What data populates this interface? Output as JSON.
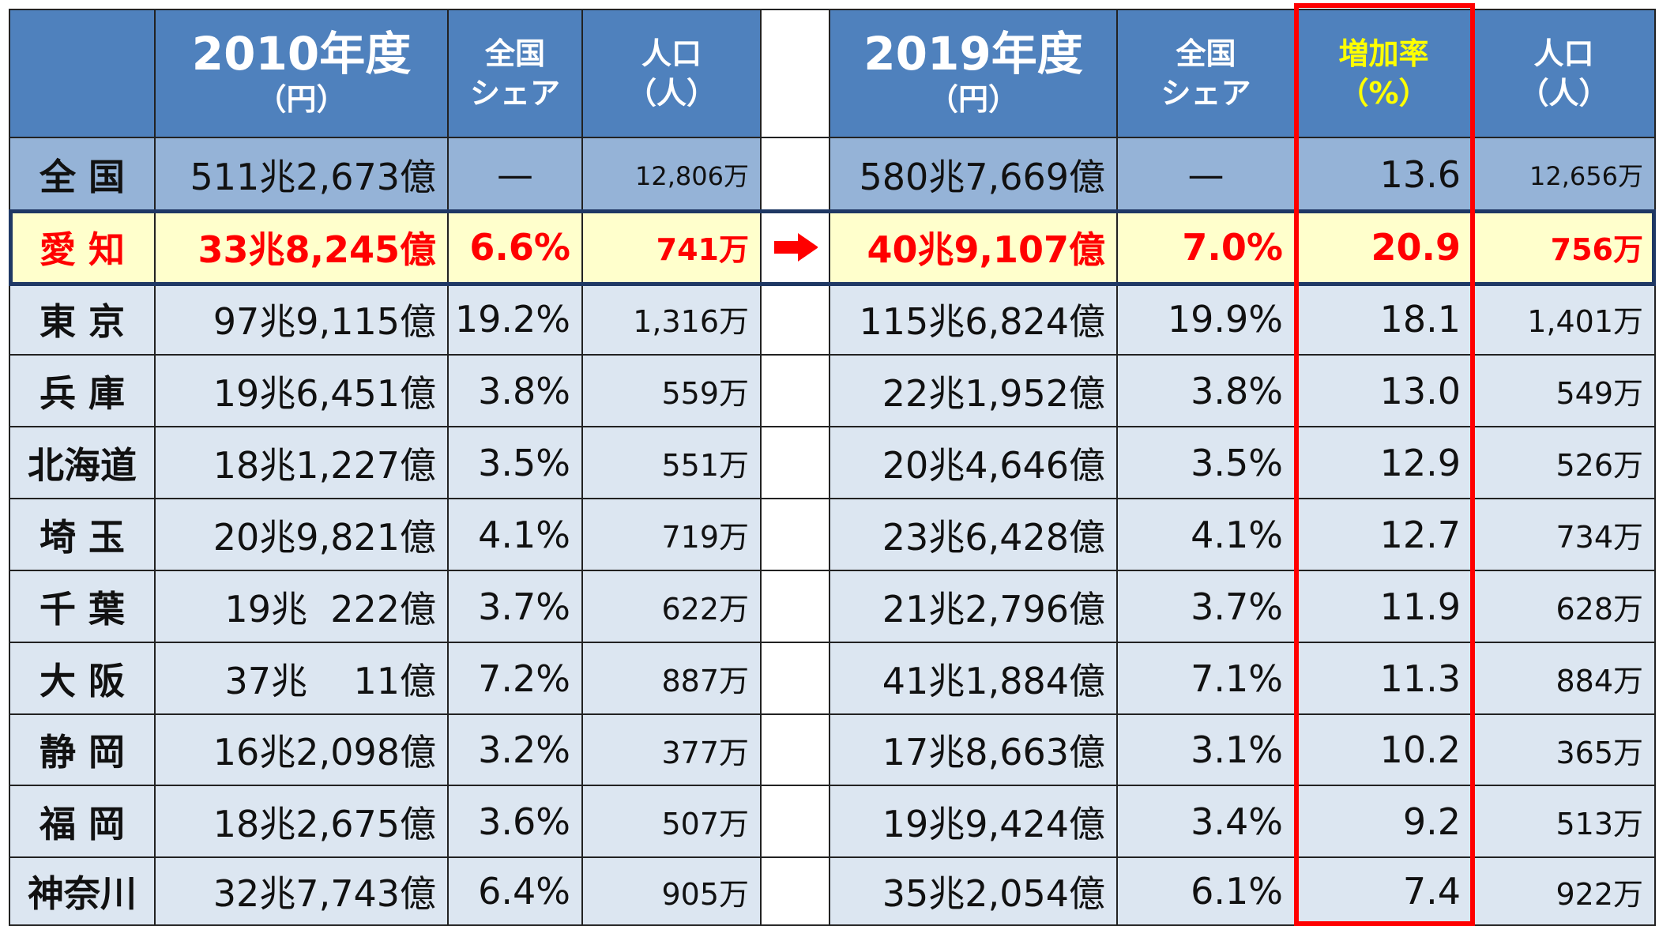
{
  "table": {
    "headers": [
      {
        "lines": []
      },
      {
        "lines": [
          "2010年度",
          "（円）"
        ]
      },
      {
        "lines": [
          "全国",
          "シェア"
        ]
      },
      {
        "lines": [
          "人口",
          "（人）"
        ]
      },
      {
        "lines": []
      },
      {
        "lines": [
          "2019年度",
          "（円）"
        ]
      },
      {
        "lines": [
          "全国",
          "シェア"
        ]
      },
      {
        "lines": [
          "増加率",
          "（%）"
        ]
      },
      {
        "lines": [
          "人口",
          "（人）"
        ]
      }
    ],
    "rows": [
      [
        "全 国",
        "511兆2,673億",
        "—",
        "12,806万",
        "580兆7,669億",
        "—",
        "13.6",
        "12,656万"
      ],
      [
        "愛 知",
        "33兆8,245億",
        "6.6%",
        "741万",
        "40兆9,107億",
        "7.0%",
        "20.9",
        "756万"
      ],
      [
        "東 京",
        "97兆9,115億",
        "19.2%",
        "1,316万",
        "115兆6,824億",
        "19.9%",
        "18.1",
        "1,401万"
      ],
      [
        "兵 庫",
        "19兆6,451億",
        "3.8%",
        "559万",
        "22兆1,952億",
        "3.8%",
        "13.0",
        "549万"
      ],
      [
        "北海道",
        "18兆1,227億",
        "3.5%",
        "551万",
        "20兆4,646億",
        "3.5%",
        "12.9",
        "526万"
      ],
      [
        "埼 玉",
        "20兆9,821億",
        "4.1%",
        "719万",
        "23兆6,428億",
        "4.1%",
        "12.7",
        "734万"
      ],
      [
        "千 葉",
        "19兆  222億",
        "3.7%",
        "622万",
        "21兆2,796億",
        "3.7%",
        "11.9",
        "628万"
      ],
      [
        "大 阪",
        "37兆    11億",
        "7.2%",
        "887万",
        "41兆1,884億",
        "7.1%",
        "11.3",
        "884万"
      ],
      [
        "静 岡",
        "16兆2,098億",
        "3.2%",
        "377万",
        "17兆8,663億",
        "3.1%",
        "10.2",
        "365万"
      ],
      [
        "福 岡",
        "18兆2,675億",
        "3.6%",
        "507万",
        "19兆9,424億",
        "3.4%",
        "9.2",
        "513万"
      ],
      [
        "神奈川",
        "32兆7,743億",
        "6.4%",
        "905万",
        "35兆2,054億",
        "6.1%",
        "7.4",
        "922万"
      ]
    ]
  }
}
